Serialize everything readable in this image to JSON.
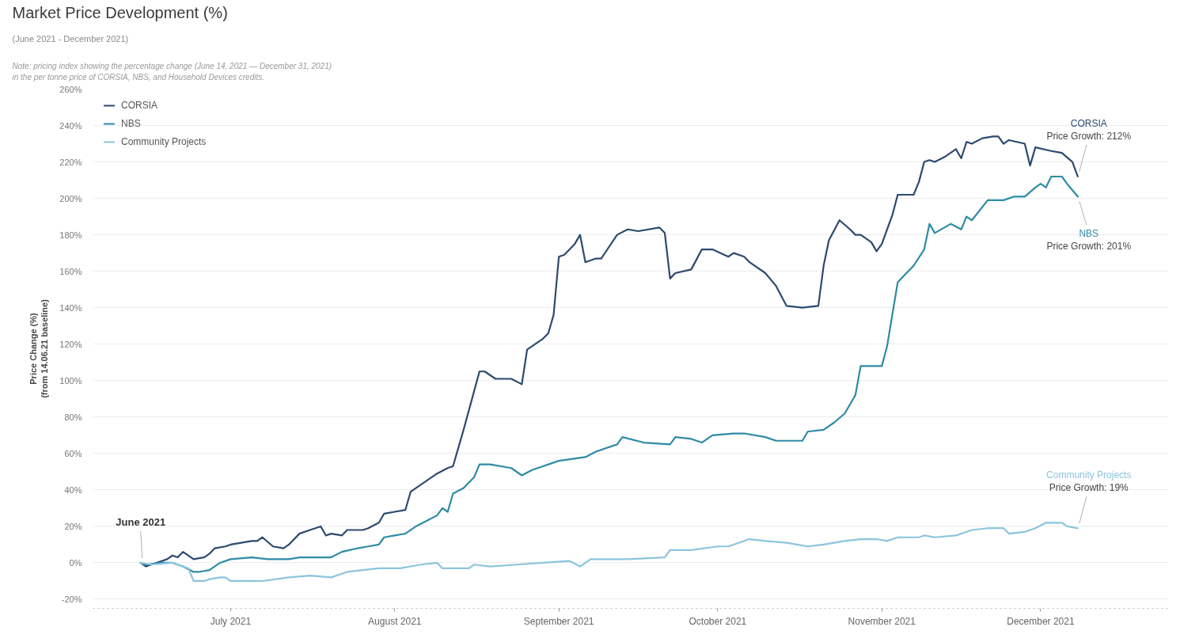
{
  "chart_data": {
    "type": "line",
    "title": "Market Price Development (%)",
    "subtitle": "(June 2021 - December 2021)",
    "ylabel": "Price Change (%)\n(from 14.06.21 baseline)",
    "annotations": [
      "Note: pricing index showing the percentage change (June 14, 2021 — December 31, 2021)\nin the per tonne price of CORSIA, NBS, and Household Devices credits.",
      {
        "text": "June 2021",
        "x": "2021-06-14",
        "y": 0
      },
      {
        "text": "CORSIA\nPrice Growth: 212%",
        "x": "2021-12-08",
        "y": 212
      },
      {
        "text": "NBS\nPrice Growth: 201%",
        "x": "2021-12-08",
        "y": 201
      },
      {
        "text": "Community Projects\nPrice Growth: 19%",
        "x": "2021-12-08",
        "y": 19
      }
    ],
    "xlim": [
      "2021-06-05",
      "2021-12-25"
    ],
    "xticks": [
      {
        "value": "2021-07-01",
        "label": "July 2021"
      },
      {
        "value": "2021-08-01",
        "label": "August 2021"
      },
      {
        "value": "2021-09-01",
        "label": "September 2021"
      },
      {
        "value": "2021-10-01",
        "label": "October 2021"
      },
      {
        "value": "2021-11-01",
        "label": "November 2021"
      },
      {
        "value": "2021-12-01",
        "label": "December 2021"
      }
    ],
    "ylim": [
      -25,
      260
    ],
    "yticks": [
      {
        "value": -20,
        "label": "-20%"
      },
      {
        "value": 0,
        "label": "0%"
      },
      {
        "value": 20,
        "label": "20%"
      },
      {
        "value": 40,
        "label": "40%"
      },
      {
        "value": 60,
        "label": "60%"
      },
      {
        "value": 80,
        "label": "80%"
      },
      {
        "value": 100,
        "label": "100%"
      },
      {
        "value": 120,
        "label": "120%"
      },
      {
        "value": 140,
        "label": "140%"
      },
      {
        "value": 160,
        "label": "160%"
      },
      {
        "value": 180,
        "label": "180%"
      },
      {
        "value": 200,
        "label": "200%"
      },
      {
        "value": 220,
        "label": "220%"
      },
      {
        "value": 240,
        "label": "240%"
      },
      {
        "value": 260,
        "label": "260%"
      }
    ],
    "grid": "y",
    "legend": "top left",
    "line_style": "solid",
    "series": [
      {
        "name": "CORSIA",
        "color": "#2c4a6e",
        "x": [
          "2021-06-14",
          "2021-06-15",
          "2021-06-17",
          "2021-06-19",
          "2021-06-20",
          "2021-06-21",
          "2021-06-22",
          "2021-06-24",
          "2021-06-26",
          "2021-06-27",
          "2021-06-28",
          "2021-06-30",
          "2021-07-01",
          "2021-07-05",
          "2021-07-06",
          "2021-07-07",
          "2021-07-09",
          "2021-07-11",
          "2021-07-12",
          "2021-07-14",
          "2021-07-16",
          "2021-07-18",
          "2021-07-19",
          "2021-07-20",
          "2021-07-22",
          "2021-07-23",
          "2021-07-26",
          "2021-07-27",
          "2021-07-29",
          "2021-07-30",
          "2021-08-01",
          "2021-08-03",
          "2021-08-04",
          "2021-08-07",
          "2021-08-09",
          "2021-08-11",
          "2021-08-12",
          "2021-08-14",
          "2021-08-17",
          "2021-08-18",
          "2021-08-20",
          "2021-08-23",
          "2021-08-25",
          "2021-08-26",
          "2021-08-29",
          "2021-08-30",
          "2021-08-31",
          "2021-09-01",
          "2021-09-02",
          "2021-09-04",
          "2021-09-05",
          "2021-09-06",
          "2021-09-08",
          "2021-09-09",
          "2021-09-12",
          "2021-09-14",
          "2021-09-16",
          "2021-09-20",
          "2021-09-21",
          "2021-09-22",
          "2021-09-23",
          "2021-09-26",
          "2021-09-28",
          "2021-09-30",
          "2021-10-03",
          "2021-10-04",
          "2021-10-06",
          "2021-10-07",
          "2021-10-10",
          "2021-10-12",
          "2021-10-14",
          "2021-10-17",
          "2021-10-20",
          "2021-10-21",
          "2021-10-22",
          "2021-10-24",
          "2021-10-26",
          "2021-10-27",
          "2021-10-28",
          "2021-10-30",
          "2021-10-31",
          "2021-11-01",
          "2021-11-03",
          "2021-11-04",
          "2021-11-07",
          "2021-11-08",
          "2021-11-09",
          "2021-11-10",
          "2021-11-11",
          "2021-11-13",
          "2021-11-15",
          "2021-11-16",
          "2021-11-17",
          "2021-11-18",
          "2021-11-20",
          "2021-11-22",
          "2021-11-23",
          "2021-11-24",
          "2021-11-25",
          "2021-11-28",
          "2021-11-29",
          "2021-11-30",
          "2021-12-03",
          "2021-12-05",
          "2021-12-07",
          "2021-12-08"
        ],
        "values": [
          0,
          -2,
          0,
          2,
          4,
          3,
          6,
          2,
          3,
          5,
          8,
          9,
          10,
          12,
          12,
          14,
          9,
          8,
          10,
          16,
          18,
          20,
          15,
          16,
          15,
          18,
          18,
          19,
          22,
          27,
          28,
          29,
          39,
          45,
          49,
          52,
          53,
          73,
          105,
          105,
          101,
          101,
          98,
          117,
          123,
          126,
          136,
          168,
          169,
          175,
          180,
          165,
          167,
          167,
          180,
          183,
          182,
          184,
          181,
          156,
          159,
          161,
          172,
          172,
          168,
          170,
          168,
          165,
          159,
          152,
          141,
          140,
          141,
          163,
          177,
          188,
          183,
          180,
          180,
          176,
          171,
          175,
          191,
          202,
          202,
          209,
          220,
          221,
          220,
          223,
          227,
          222,
          231,
          230,
          233,
          234,
          234,
          230,
          232,
          230,
          218,
          228,
          226,
          225,
          220,
          212
        ]
      },
      {
        "name": "NBS",
        "color": "#2e8ba5",
        "x": [
          "2021-06-14",
          "2021-06-15",
          "2021-06-18",
          "2021-06-20",
          "2021-06-22",
          "2021-06-24",
          "2021-06-25",
          "2021-06-27",
          "2021-06-29",
          "2021-07-01",
          "2021-07-05",
          "2021-07-08",
          "2021-07-12",
          "2021-07-14",
          "2021-07-20",
          "2021-07-22",
          "2021-07-25",
          "2021-07-27",
          "2021-07-29",
          "2021-07-30",
          "2021-08-01",
          "2021-08-03",
          "2021-08-05",
          "2021-08-07",
          "2021-08-09",
          "2021-08-10",
          "2021-08-11",
          "2021-08-12",
          "2021-08-14",
          "2021-08-16",
          "2021-08-17",
          "2021-08-19",
          "2021-08-23",
          "2021-08-25",
          "2021-08-27",
          "2021-08-29",
          "2021-08-31",
          "2021-09-01",
          "2021-09-06",
          "2021-09-08",
          "2021-09-12",
          "2021-09-13",
          "2021-09-17",
          "2021-09-22",
          "2021-09-23",
          "2021-09-26",
          "2021-09-28",
          "2021-09-30",
          "2021-10-04",
          "2021-10-06",
          "2021-10-10",
          "2021-10-12",
          "2021-10-14",
          "2021-10-17",
          "2021-10-18",
          "2021-10-21",
          "2021-10-23",
          "2021-10-25",
          "2021-10-27",
          "2021-10-28",
          "2021-11-01",
          "2021-11-02",
          "2021-11-04",
          "2021-11-05",
          "2021-11-07",
          "2021-11-09",
          "2021-11-10",
          "2021-11-11",
          "2021-11-14",
          "2021-11-16",
          "2021-11-17",
          "2021-11-18",
          "2021-11-21",
          "2021-11-24",
          "2021-11-26",
          "2021-11-28",
          "2021-11-30",
          "2021-12-01",
          "2021-12-02",
          "2021-12-03",
          "2021-12-05",
          "2021-12-06",
          "2021-12-08"
        ],
        "values": [
          0,
          -1,
          0,
          0,
          -2,
          -5,
          -5,
          -4,
          0,
          2,
          3,
          2,
          2,
          3,
          3,
          6,
          8,
          9,
          10,
          14,
          15,
          16,
          20,
          23,
          26,
          30,
          28,
          38,
          41,
          47,
          54,
          54,
          52,
          48,
          51,
          53,
          55,
          56,
          58,
          61,
          65,
          69,
          66,
          65,
          69,
          68,
          66,
          70,
          71,
          71,
          69,
          67,
          67,
          67,
          72,
          73,
          77,
          82,
          92,
          108,
          108,
          119,
          154,
          157,
          163,
          172,
          186,
          181,
          186,
          183,
          190,
          188,
          199,
          199,
          201,
          201,
          206,
          208,
          206,
          212,
          212,
          208,
          201
        ]
      },
      {
        "name": "Community Projects",
        "color": "#8cc4dd",
        "x": [
          "2021-06-14",
          "2021-06-16",
          "2021-06-20",
          "2021-06-23",
          "2021-06-24",
          "2021-06-26",
          "2021-06-27",
          "2021-06-29",
          "2021-06-30",
          "2021-07-01",
          "2021-07-07",
          "2021-07-12",
          "2021-07-16",
          "2021-07-20",
          "2021-07-23",
          "2021-07-29",
          "2021-08-02",
          "2021-08-06",
          "2021-08-09",
          "2021-08-10",
          "2021-08-15",
          "2021-08-16",
          "2021-08-19",
          "2021-08-24",
          "2021-08-29",
          "2021-09-03",
          "2021-09-05",
          "2021-09-07",
          "2021-09-14",
          "2021-09-21",
          "2021-09-22",
          "2021-09-26",
          "2021-10-01",
          "2021-10-03",
          "2021-10-07",
          "2021-10-10",
          "2021-10-14",
          "2021-10-18",
          "2021-10-21",
          "2021-10-25",
          "2021-10-28",
          "2021-10-31",
          "2021-11-02",
          "2021-11-04",
          "2021-11-08",
          "2021-11-09",
          "2021-11-11",
          "2021-11-15",
          "2021-11-18",
          "2021-11-21",
          "2021-11-24",
          "2021-11-25",
          "2021-11-28",
          "2021-11-30",
          "2021-12-02",
          "2021-12-05",
          "2021-12-06",
          "2021-12-08"
        ],
        "values": [
          0,
          -1,
          0,
          -3,
          -10,
          -10,
          -9,
          -8,
          -8,
          -10,
          -10,
          -8,
          -7,
          -8,
          -5,
          -3,
          -3,
          -1,
          0,
          -3,
          -3,
          -1,
          -2,
          -1,
          0,
          1,
          -2,
          2,
          2,
          3,
          7,
          7,
          9,
          9,
          13,
          12,
          11,
          9,
          10,
          12,
          13,
          13,
          12,
          14,
          14,
          15,
          14,
          15,
          18,
          19,
          19,
          16,
          17,
          19,
          22,
          22,
          20,
          19
        ]
      }
    ]
  }
}
